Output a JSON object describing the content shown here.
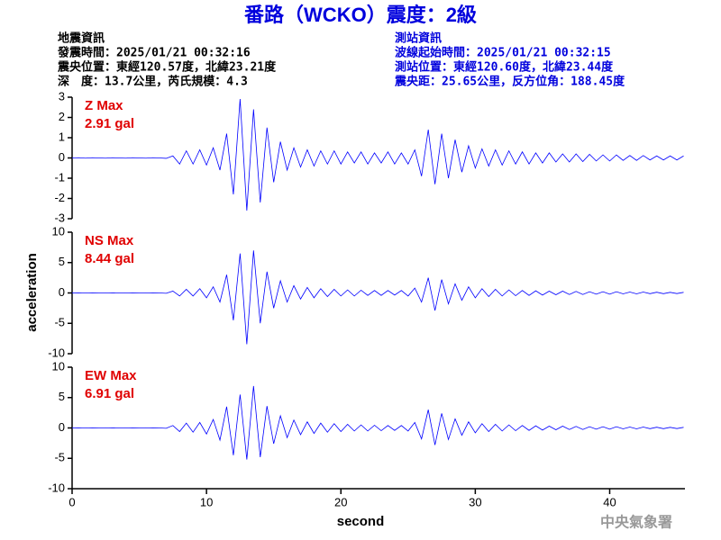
{
  "header": {
    "title": "番路（WCKO）震度：2級",
    "left": [
      "地震資訊",
      "發震時間：2025/01/21 00:32:16",
      "震央位置：東經120.57度，北緯23.21度",
      "深　度：13.7公里，芮氏規模：4.3"
    ],
    "right": [
      "測站資訊",
      "波線起始時間：2025/01/21 00:32:15",
      "測站位置：東經120.60度，北緯23.44度",
      "震央距：25.65公里，反方位角：188.45度"
    ]
  },
  "y_label": "acceleration",
  "x_label": "second",
  "footer": "中央氣象署",
  "chart_data": [
    {
      "type": "line",
      "label": "Z Max",
      "max_label": "2.91 gal",
      "color": "#0000ff",
      "label_color": "#e00000",
      "xlim": [
        0,
        45.6
      ],
      "ylim": [
        -3,
        3
      ],
      "yticks": [
        -3,
        -2,
        -1,
        0,
        1,
        2,
        3
      ],
      "x": [
        0,
        0.5,
        1,
        1.5,
        2,
        2.5,
        3,
        3.5,
        4,
        4.5,
        5,
        5.5,
        6,
        6.5,
        7,
        7.5,
        8,
        8.5,
        9,
        9.5,
        10,
        10.5,
        11,
        11.5,
        12,
        12.5,
        13,
        13.5,
        14,
        14.5,
        15,
        15.5,
        16,
        16.5,
        17,
        17.5,
        18,
        18.5,
        19,
        19.5,
        20,
        20.5,
        21,
        21.5,
        22,
        22.5,
        23,
        23.5,
        24,
        24.5,
        25,
        25.5,
        26,
        26.5,
        27,
        27.5,
        28,
        28.5,
        29,
        29.5,
        30,
        30.5,
        31,
        31.5,
        32,
        32.5,
        33,
        33.5,
        34,
        34.5,
        35,
        35.5,
        36,
        36.5,
        37,
        37.5,
        38,
        38.5,
        39,
        39.5,
        40,
        40.5,
        41,
        41.5,
        42,
        42.5,
        43,
        43.5,
        44,
        44.5,
        45,
        45.5
      ],
      "values": [
        0,
        0.01,
        -0.01,
        0.01,
        0,
        -0.01,
        0.01,
        0,
        -0.01,
        0.01,
        0,
        -0.01,
        0.01,
        0,
        -0.02,
        0.1,
        -0.3,
        0.35,
        -0.3,
        0.4,
        -0.35,
        0.5,
        -0.6,
        1.2,
        -1.8,
        2.91,
        -2.6,
        2.4,
        -2.2,
        1.5,
        -1.2,
        0.8,
        -0.6,
        0.5,
        -0.45,
        0.4,
        -0.4,
        0.35,
        -0.3,
        0.35,
        -0.3,
        0.3,
        -0.25,
        0.3,
        -0.3,
        0.25,
        -0.25,
        0.3,
        -0.3,
        0.25,
        -0.3,
        0.4,
        -0.9,
        1.4,
        -1.3,
        1.2,
        -1.0,
        0.9,
        -0.7,
        0.6,
        -0.5,
        0.45,
        -0.4,
        0.4,
        -0.35,
        0.35,
        -0.3,
        0.3,
        -0.3,
        0.25,
        -0.25,
        0.25,
        -0.2,
        0.2,
        -0.2,
        0.2,
        -0.18,
        0.18,
        -0.15,
        0.15,
        -0.15,
        0.15,
        -0.12,
        0.12,
        -0.12,
        0.12,
        -0.1,
        0.1,
        -0.1,
        0.1,
        -0.1,
        0.1
      ]
    },
    {
      "type": "line",
      "label": "NS Max",
      "max_label": "8.44 gal",
      "color": "#0000ff",
      "label_color": "#e00000",
      "xlim": [
        0,
        45.6
      ],
      "ylim": [
        -10,
        10
      ],
      "yticks": [
        -10,
        -5,
        0,
        5,
        10
      ],
      "x": [
        0,
        0.5,
        1,
        1.5,
        2,
        2.5,
        3,
        3.5,
        4,
        4.5,
        5,
        5.5,
        6,
        6.5,
        7,
        7.5,
        8,
        8.5,
        9,
        9.5,
        10,
        10.5,
        11,
        11.5,
        12,
        12.5,
        13,
        13.5,
        14,
        14.5,
        15,
        15.5,
        16,
        16.5,
        17,
        17.5,
        18,
        18.5,
        19,
        19.5,
        20,
        20.5,
        21,
        21.5,
        22,
        22.5,
        23,
        23.5,
        24,
        24.5,
        25,
        25.5,
        26,
        26.5,
        27,
        27.5,
        28,
        28.5,
        29,
        29.5,
        30,
        30.5,
        31,
        31.5,
        32,
        32.5,
        33,
        33.5,
        34,
        34.5,
        35,
        35.5,
        36,
        36.5,
        37,
        37.5,
        38,
        38.5,
        39,
        39.5,
        40,
        40.5,
        41,
        41.5,
        42,
        42.5,
        43,
        43.5,
        44,
        44.5,
        45,
        45.5
      ],
      "values": [
        0,
        0.02,
        -0.02,
        0.02,
        0,
        -0.02,
        0.02,
        0,
        -0.02,
        0.02,
        0,
        -0.02,
        0.02,
        0,
        -0.05,
        0.3,
        -0.5,
        0.6,
        -0.5,
        0.7,
        -0.8,
        1.0,
        -1.5,
        3.0,
        -4.5,
        6.5,
        -8.44,
        7.0,
        -5.0,
        3.5,
        -2.5,
        2.0,
        -1.5,
        1.2,
        -1.0,
        0.9,
        -0.8,
        0.7,
        -0.6,
        0.6,
        -0.5,
        0.5,
        -0.5,
        0.45,
        -0.4,
        0.4,
        -0.4,
        0.4,
        -0.35,
        0.4,
        -0.5,
        0.8,
        -1.5,
        2.5,
        -2.9,
        2.2,
        -1.8,
        1.5,
        -1.2,
        1.0,
        -0.8,
        0.7,
        -0.6,
        0.6,
        -0.5,
        0.5,
        -0.45,
        0.4,
        -0.4,
        0.35,
        -0.35,
        0.3,
        -0.3,
        0.3,
        -0.25,
        0.25,
        -0.25,
        0.2,
        -0.2,
        0.2,
        -0.2,
        0.2,
        -0.15,
        0.15,
        -0.15,
        0.15,
        -0.12,
        0.12,
        -0.12,
        0.1,
        -0.1,
        0.1
      ]
    },
    {
      "type": "line",
      "label": "EW Max",
      "max_label": "6.91 gal",
      "color": "#0000ff",
      "label_color": "#e00000",
      "xlim": [
        0,
        45.6
      ],
      "ylim": [
        -10,
        10
      ],
      "yticks": [
        -10,
        -5,
        0,
        5,
        10
      ],
      "xticks": [
        0,
        10,
        20,
        30,
        40
      ],
      "x": [
        0,
        0.5,
        1,
        1.5,
        2,
        2.5,
        3,
        3.5,
        4,
        4.5,
        5,
        5.5,
        6,
        6.5,
        7,
        7.5,
        8,
        8.5,
        9,
        9.5,
        10,
        10.5,
        11,
        11.5,
        12,
        12.5,
        13,
        13.5,
        14,
        14.5,
        15,
        15.5,
        16,
        16.5,
        17,
        17.5,
        18,
        18.5,
        19,
        19.5,
        20,
        20.5,
        21,
        21.5,
        22,
        22.5,
        23,
        23.5,
        24,
        24.5,
        25,
        25.5,
        26,
        26.5,
        27,
        27.5,
        28,
        28.5,
        29,
        29.5,
        30,
        30.5,
        31,
        31.5,
        32,
        32.5,
        33,
        33.5,
        34,
        34.5,
        35,
        35.5,
        36,
        36.5,
        37,
        37.5,
        38,
        38.5,
        39,
        39.5,
        40,
        40.5,
        41,
        41.5,
        42,
        42.5,
        43,
        43.5,
        44,
        44.5,
        45,
        45.5
      ],
      "values": [
        0,
        0.02,
        -0.02,
        0.02,
        0,
        -0.02,
        0.02,
        0,
        -0.02,
        0.02,
        0,
        -0.02,
        0.02,
        0,
        -0.05,
        0.4,
        -0.6,
        0.8,
        -0.7,
        0.9,
        -1.0,
        1.4,
        -2.0,
        3.5,
        -4.5,
        5.5,
        -5.2,
        6.91,
        -4.8,
        3.6,
        -2.6,
        2.0,
        -1.6,
        1.3,
        -1.1,
        1.0,
        -0.9,
        0.8,
        -0.7,
        0.7,
        -0.6,
        0.6,
        -0.5,
        0.5,
        -0.5,
        0.45,
        -0.45,
        0.4,
        -0.4,
        0.4,
        -0.5,
        0.9,
        -1.8,
        3.0,
        -2.8,
        2.4,
        -1.9,
        1.5,
        -1.2,
        1.0,
        -0.8,
        0.7,
        -0.6,
        0.6,
        -0.5,
        0.5,
        -0.45,
        0.4,
        -0.4,
        0.35,
        -0.35,
        0.3,
        -0.3,
        0.3,
        -0.25,
        0.25,
        -0.25,
        0.2,
        -0.2,
        0.2,
        -0.2,
        0.2,
        -0.15,
        0.15,
        -0.15,
        0.15,
        -0.12,
        0.12,
        -0.12,
        0.1,
        -0.1,
        0.1
      ]
    }
  ]
}
